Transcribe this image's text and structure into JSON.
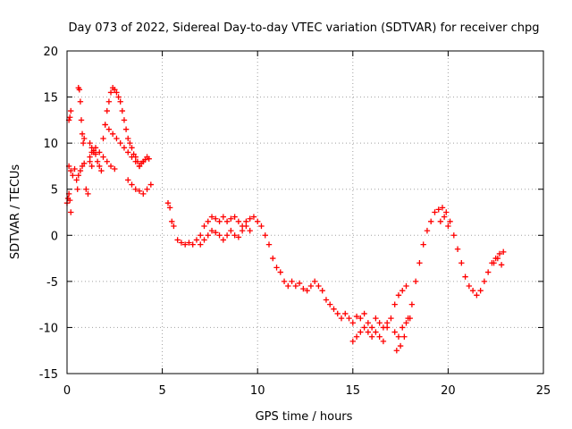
{
  "chart_data": {
    "type": "scatter",
    "title": "Day 073 of 2022, Sidereal Day-to-day VTEC variation (SDTVAR) for receiver chpg",
    "xlabel": "GPS time / hours",
    "ylabel": "SDTVAR / TECUs",
    "xlim": [
      0,
      25
    ],
    "ylim": [
      -15,
      20
    ],
    "x_ticks": [
      0,
      5,
      10,
      15,
      20,
      25
    ],
    "y_ticks": [
      -15,
      -10,
      -5,
      0,
      5,
      10,
      15,
      20
    ],
    "x_tick_labels": [
      "0",
      "5",
      "10",
      "15",
      "20",
      "25"
    ],
    "y_tick_labels": [
      "-15",
      "-10",
      "-5",
      "0",
      "5",
      "10",
      "15",
      "20"
    ],
    "grid": true,
    "marker": "+",
    "color": "#ff0000",
    "series": [
      {
        "name": "SDTVAR",
        "x": [
          0.0,
          0.05,
          0.1,
          0.15,
          0.2,
          0.1,
          0.15,
          0.2,
          0.1,
          0.2,
          0.3,
          0.4,
          0.5,
          0.55,
          0.6,
          0.65,
          0.7,
          0.75,
          0.8,
          0.85,
          0.9,
          0.6,
          0.7,
          0.8,
          0.9,
          1.0,
          1.1,
          1.2,
          1.3,
          1.4,
          1.5,
          1.6,
          1.7,
          1.8,
          1.9,
          2.0,
          2.1,
          2.2,
          2.3,
          2.4,
          2.5,
          2.6,
          2.7,
          2.8,
          2.9,
          3.0,
          3.1,
          3.2,
          3.3,
          3.4,
          3.5,
          3.6,
          3.7,
          3.8,
          3.9,
          4.0,
          4.1,
          4.2,
          4.3,
          2.0,
          2.2,
          2.4,
          2.6,
          2.8,
          3.0,
          3.2,
          3.4,
          3.6,
          3.8,
          4.0,
          3.2,
          3.4,
          3.6,
          3.8,
          4.0,
          4.2,
          4.4,
          1.5,
          1.7,
          1.9,
          2.1,
          2.3,
          2.5,
          1.2,
          1.3,
          1.4,
          1.2,
          1.3,
          5.3,
          5.4,
          5.5,
          5.6,
          5.8,
          6.0,
          6.2,
          6.4,
          6.6,
          6.8,
          7.0,
          7.2,
          7.4,
          7.6,
          7.8,
          8.0,
          8.2,
          8.4,
          8.6,
          8.8,
          9.0,
          9.2,
          9.4,
          9.6,
          9.8,
          10.0,
          10.2,
          10.4,
          10.6,
          10.8,
          11.0,
          11.2,
          11.4,
          11.6,
          7.0,
          7.2,
          7.4,
          7.6,
          7.8,
          8.0,
          8.2,
          8.4,
          8.6,
          8.8,
          9.0,
          9.2,
          9.4,
          9.6,
          11.8,
          12.0,
          12.2,
          12.4,
          12.6,
          12.8,
          13.0,
          13.2,
          13.4,
          13.6,
          13.8,
          14.0,
          14.2,
          14.4,
          14.6,
          14.8,
          15.0,
          15.2,
          15.4,
          15.6,
          15.8,
          16.0,
          16.2,
          16.4,
          16.6,
          16.8,
          15.0,
          15.2,
          15.4,
          15.6,
          15.8,
          16.0,
          16.2,
          16.4,
          16.6,
          16.8,
          17.0,
          17.2,
          17.4,
          17.6,
          17.8,
          17.2,
          17.4,
          17.6,
          17.8,
          18.0,
          17.3,
          17.5,
          17.7,
          17.9,
          18.1,
          18.3,
          18.5,
          18.7,
          18.9,
          19.1,
          19.3,
          19.5,
          19.7,
          19.9,
          20.1,
          20.3,
          20.5,
          20.7,
          20.9,
          21.1,
          21.3,
          21.5,
          21.7,
          21.9,
          22.1,
          22.3,
          22.5,
          22.7,
          22.9,
          19.6,
          19.8,
          20.0,
          22.4,
          22.6,
          22.8
        ],
        "y": [
          3.5,
          4.0,
          4.5,
          3.8,
          2.5,
          12.5,
          12.8,
          13.5,
          7.5,
          7.0,
          6.5,
          7.2,
          6.0,
          5.0,
          16.0,
          15.8,
          14.5,
          12.5,
          11.0,
          10.0,
          10.5,
          6.5,
          7.0,
          7.5,
          7.8,
          5.0,
          4.5,
          8.5,
          9.0,
          9.2,
          8.8,
          8.0,
          7.5,
          7.0,
          10.5,
          12.0,
          13.5,
          14.5,
          15.5,
          16.0,
          15.8,
          15.5,
          15.0,
          14.5,
          13.5,
          12.5,
          11.5,
          10.5,
          10.0,
          9.5,
          8.8,
          8.5,
          8.0,
          7.5,
          7.8,
          8.0,
          8.2,
          8.5,
          8.3,
          12.0,
          11.5,
          11.0,
          10.5,
          10.0,
          9.5,
          9.0,
          8.5,
          8.0,
          7.5,
          8.0,
          6.0,
          5.5,
          5.0,
          4.8,
          4.5,
          5.0,
          5.5,
          9.5,
          9.0,
          8.5,
          8.0,
          7.5,
          7.2,
          10.0,
          9.5,
          9.0,
          8.0,
          7.5,
          3.5,
          3.0,
          1.5,
          1.0,
          -0.5,
          -0.8,
          -1.0,
          -0.8,
          -1.0,
          -0.5,
          0.0,
          1.0,
          1.5,
          2.0,
          1.8,
          1.5,
          2.0,
          1.5,
          1.8,
          2.0,
          1.5,
          1.0,
          1.5,
          1.8,
          2.0,
          1.5,
          1.0,
          0.0,
          -1.0,
          -2.5,
          -3.5,
          -4.0,
          -5.0,
          -5.5,
          -1.0,
          -0.5,
          0.0,
          0.5,
          0.3,
          0.0,
          -0.5,
          0.0,
          0.5,
          0.0,
          -0.2,
          0.5,
          1.0,
          0.5,
          -5.0,
          -5.5,
          -5.2,
          -5.8,
          -6.0,
          -5.5,
          -5.0,
          -5.5,
          -6.0,
          -7.0,
          -7.5,
          -8.0,
          -8.5,
          -9.0,
          -8.5,
          -9.0,
          -9.5,
          -8.8,
          -9.0,
          -8.5,
          -9.5,
          -10.0,
          -9.0,
          -9.5,
          -10.0,
          -9.5,
          -11.5,
          -11.0,
          -10.5,
          -10.0,
          -10.5,
          -11.0,
          -10.5,
          -11.0,
          -11.5,
          -10.0,
          -9.0,
          -7.5,
          -6.5,
          -6.0,
          -5.5,
          -10.5,
          -11.0,
          -10.0,
          -9.5,
          -9.0,
          -12.5,
          -12.0,
          -11.0,
          -9.0,
          -7.5,
          -5.0,
          -3.0,
          -1.0,
          0.5,
          1.5,
          2.5,
          2.8,
          3.0,
          2.5,
          1.5,
          0.0,
          -1.5,
          -3.0,
          -4.5,
          -5.5,
          -6.0,
          -6.5,
          -6.0,
          -5.0,
          -4.0,
          -3.0,
          -2.5,
          -2.0,
          -1.8,
          1.5,
          2.0,
          1.0,
          -3.0,
          -2.5,
          -3.2
        ]
      }
    ]
  }
}
